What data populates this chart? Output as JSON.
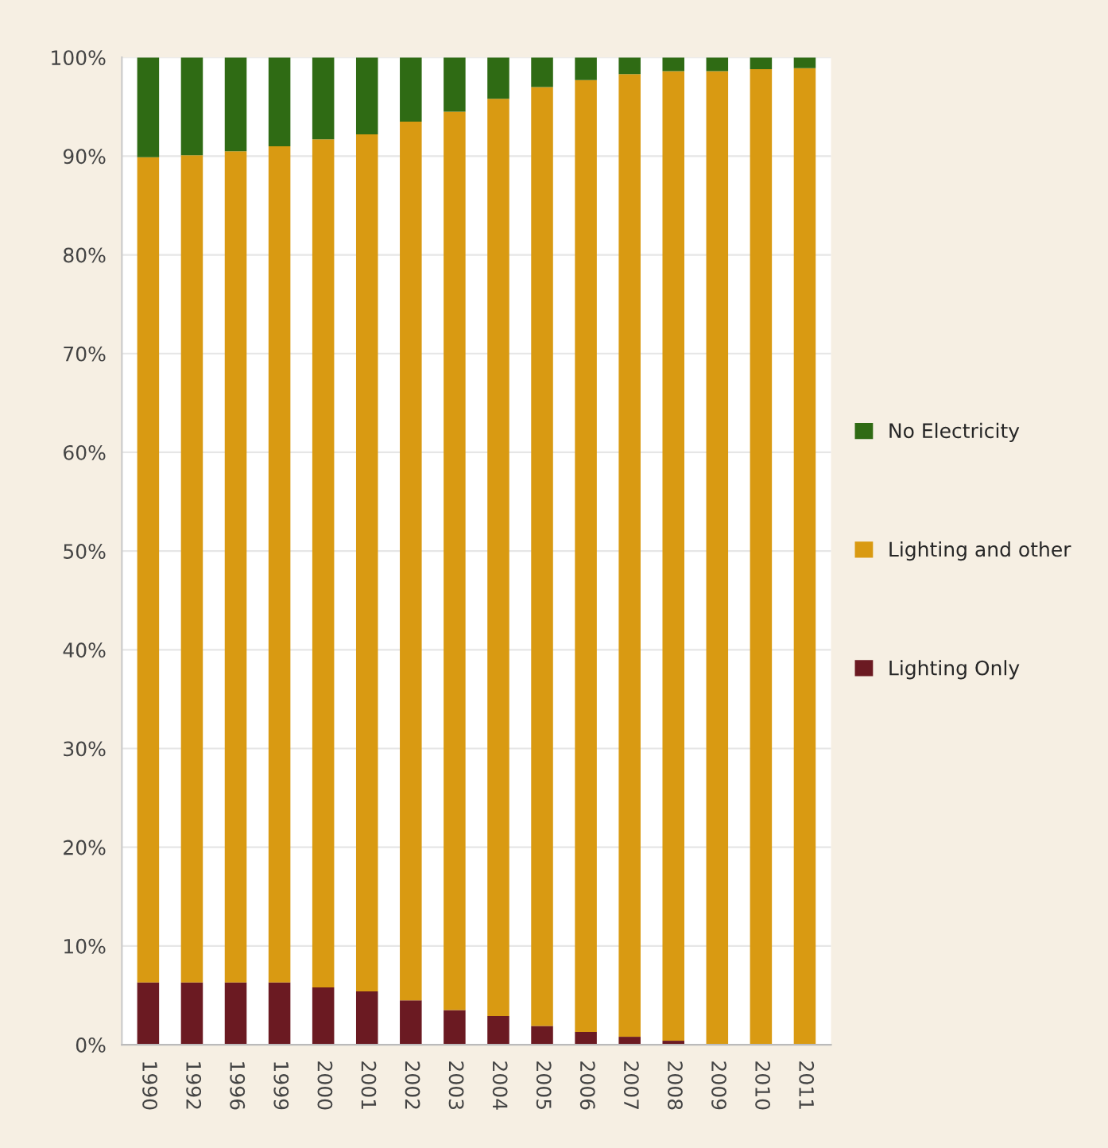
{
  "chart_data": {
    "type": "bar",
    "stacked": true,
    "categories": [
      "1990",
      "1992",
      "1996",
      "1999",
      "2000",
      "2001",
      "2002",
      "2003",
      "2004",
      "2005",
      "2006",
      "2007",
      "2008",
      "2009",
      "2010",
      "2011"
    ],
    "series": [
      {
        "name": "Lighting Only",
        "color": "#6b1a22",
        "values": [
          6.3,
          6.3,
          6.3,
          6.3,
          5.8,
          5.4,
          4.5,
          3.5,
          2.9,
          1.9,
          1.3,
          0.8,
          0.4,
          null,
          null,
          null
        ]
      },
      {
        "name": "Lighting and other",
        "color": "#d99a12",
        "values": [
          83.6,
          83.8,
          84.2,
          84.7,
          85.9,
          86.8,
          89.0,
          91.0,
          92.9,
          95.1,
          96.4,
          97.5,
          98.2,
          98.6,
          98.8,
          98.9
        ]
      },
      {
        "name": "No Electricity",
        "color": "#2f6b14",
        "values": [
          10.1,
          9.9,
          9.5,
          9.0,
          8.3,
          7.8,
          6.5,
          5.5,
          4.2,
          3.0,
          2.3,
          1.7,
          1.4,
          1.4,
          1.2,
          1.1
        ]
      }
    ],
    "ylim": [
      0,
      100
    ],
    "yticks": [
      {
        "value": 0,
        "label": "0%"
      },
      {
        "value": 10,
        "label": "10%"
      },
      {
        "value": 20,
        "label": "20%"
      },
      {
        "value": 30,
        "label": "30%"
      },
      {
        "value": 40,
        "label": "40%"
      },
      {
        "value": 50,
        "label": "50%"
      },
      {
        "value": 60,
        "label": "60%"
      },
      {
        "value": 70,
        "label": "70%"
      },
      {
        "value": 80,
        "label": "80%"
      },
      {
        "value": 90,
        "label": "90%"
      },
      {
        "value": 100,
        "label": "100%"
      }
    ],
    "grid": "y",
    "legend": "right"
  }
}
